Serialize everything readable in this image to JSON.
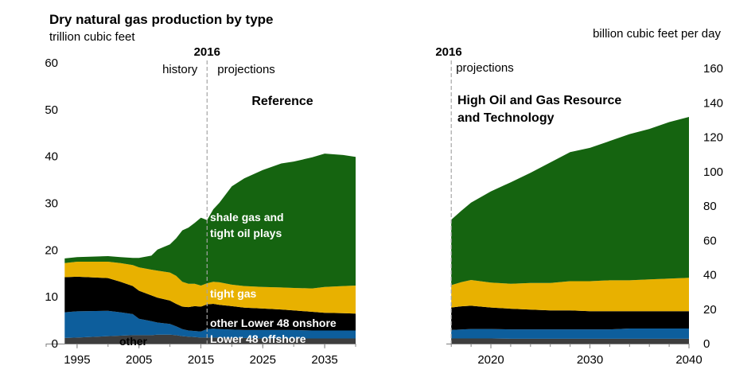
{
  "header": {
    "title": "Dry natural gas production by type",
    "left_unit": "trillion cubic feet",
    "right_unit": "billion cubic feet per day"
  },
  "colors": {
    "other": "#3d3d3d",
    "lower48_offshore": "#0d5e9c",
    "other_lower48_onshore": "#000000",
    "tight_gas": "#e8b100",
    "shale_gas": "#156410",
    "divider": "#a6a6a6"
  },
  "chart_data": [
    {
      "type": "area",
      "stacked": true,
      "title": "Reference",
      "divider_label": "2016",
      "history_label": "history",
      "projection_label": "projections",
      "x": [
        1993,
        1995,
        2000,
        2002,
        2004,
        2005,
        2007,
        2008,
        2010,
        2011,
        2012,
        2013,
        2014,
        2015,
        2016,
        2017,
        2018,
        2020,
        2022,
        2025,
        2028,
        2030,
        2033,
        2035,
        2038,
        2040
      ],
      "xlim": [
        1990,
        2040
      ],
      "xticks": [
        "1995",
        "2005",
        "2015",
        "2025",
        "2035"
      ],
      "ylim": [
        0,
        60
      ],
      "yticks": [
        "0",
        "10",
        "20",
        "30",
        "40",
        "50",
        "60"
      ],
      "series": [
        {
          "name": "other",
          "key": "other",
          "values": [
            1.2,
            1.3,
            1.6,
            1.7,
            1.8,
            1.8,
            1.8,
            1.9,
            1.9,
            1.8,
            1.6,
            1.5,
            1.4,
            1.3,
            1.3,
            1.3,
            1.3,
            1.2,
            1.2,
            1.1,
            1.1,
            1.1,
            1.1,
            1.1,
            1.1,
            1.1
          ],
          "label_color": "black"
        },
        {
          "name": "Lower 48 offshore",
          "key": "lower48_offshore",
          "values": [
            5.5,
            5.6,
            5.4,
            5.0,
            4.5,
            3.5,
            3.0,
            2.6,
            2.3,
            1.9,
            1.5,
            1.3,
            1.3,
            1.3,
            1.8,
            1.9,
            1.8,
            1.8,
            1.7,
            1.8,
            1.8,
            1.8,
            1.7,
            1.7,
            1.7,
            1.7
          ],
          "label_color": "white"
        },
        {
          "name": "other Lower 48 onshore",
          "key": "other_lower48_onshore",
          "values": [
            7.5,
            7.4,
            7.0,
            6.5,
            6.0,
            6.0,
            5.5,
            5.3,
            5.0,
            4.8,
            4.8,
            5.0,
            5.3,
            5.3,
            5.3,
            5.3,
            5.2,
            5.0,
            4.8,
            4.6,
            4.4,
            4.2,
            4.0,
            3.8,
            3.7,
            3.6
          ],
          "label_color": "white"
        },
        {
          "name": "tight gas",
          "key": "tight_gas",
          "values": [
            3.0,
            3.2,
            3.5,
            4.0,
            4.5,
            5.0,
            5.5,
            5.8,
            6.0,
            6.0,
            5.3,
            5.0,
            4.8,
            4.5,
            4.5,
            4.7,
            4.8,
            4.6,
            4.6,
            4.6,
            4.7,
            4.8,
            5.0,
            5.5,
            5.8,
            6.0
          ],
          "label_color": "white"
        },
        {
          "name": "shale gas and tight oil plays",
          "key": "shale_gas",
          "values": [
            1.0,
            1.0,
            1.2,
            1.3,
            1.5,
            2.0,
            3.0,
            4.5,
            6.0,
            8.0,
            11.0,
            12.0,
            13.0,
            14.5,
            13.5,
            15.5,
            17.0,
            21.0,
            23.0,
            25.0,
            26.5,
            27.0,
            28.0,
            28.5,
            28.0,
            27.5
          ],
          "label_color": "white"
        }
      ]
    },
    {
      "type": "area",
      "stacked": true,
      "title": "High Oil and Gas Resource and Technology",
      "divider_label": "2016",
      "projection_label": "projections",
      "x": [
        2016,
        2017,
        2018,
        2020,
        2022,
        2024,
        2026,
        2028,
        2030,
        2032,
        2034,
        2036,
        2038,
        2040
      ],
      "xlim": [
        2015.5,
        2040
      ],
      "xticks": [
        "2020",
        "2030",
        "2040"
      ],
      "ylim": [
        0,
        160
      ],
      "yticks": [
        "0",
        "20",
        "40",
        "60",
        "80",
        "100",
        "120",
        "140",
        "160"
      ],
      "series": [
        {
          "name": "other",
          "key": "other",
          "values": [
            3.0,
            3.0,
            3.0,
            3.0,
            2.8,
            2.8,
            2.8,
            2.8,
            2.8,
            2.8,
            2.8,
            2.8,
            2.8,
            2.8
          ]
        },
        {
          "name": "Lower 48 offshore",
          "key": "lower48_offshore",
          "values": [
            5.0,
            5.2,
            5.5,
            5.5,
            5.5,
            5.5,
            5.5,
            5.5,
            5.5,
            5.5,
            6.0,
            6.0,
            6.0,
            6.0
          ]
        },
        {
          "name": "other Lower 48 onshore",
          "key": "other_lower48_onshore",
          "values": [
            13.0,
            13.5,
            13.5,
            12.5,
            12.0,
            11.5,
            11.0,
            11.0,
            10.5,
            10.5,
            10.0,
            10.0,
            10.0,
            10.0
          ]
        },
        {
          "name": "tight gas",
          "key": "tight_gas",
          "values": [
            13.0,
            14.0,
            15.0,
            14.5,
            14.5,
            15.5,
            16.0,
            17.0,
            17.5,
            18.0,
            18.0,
            18.5,
            19.0,
            19.5
          ]
        },
        {
          "name": "shale gas and tight oil plays",
          "key": "shale_gas",
          "values": [
            38.0,
            41.5,
            45.0,
            53.0,
            59.0,
            64.0,
            70.0,
            75.0,
            77.5,
            81.0,
            85.0,
            87.5,
            91.0,
            93.5
          ]
        }
      ]
    }
  ]
}
